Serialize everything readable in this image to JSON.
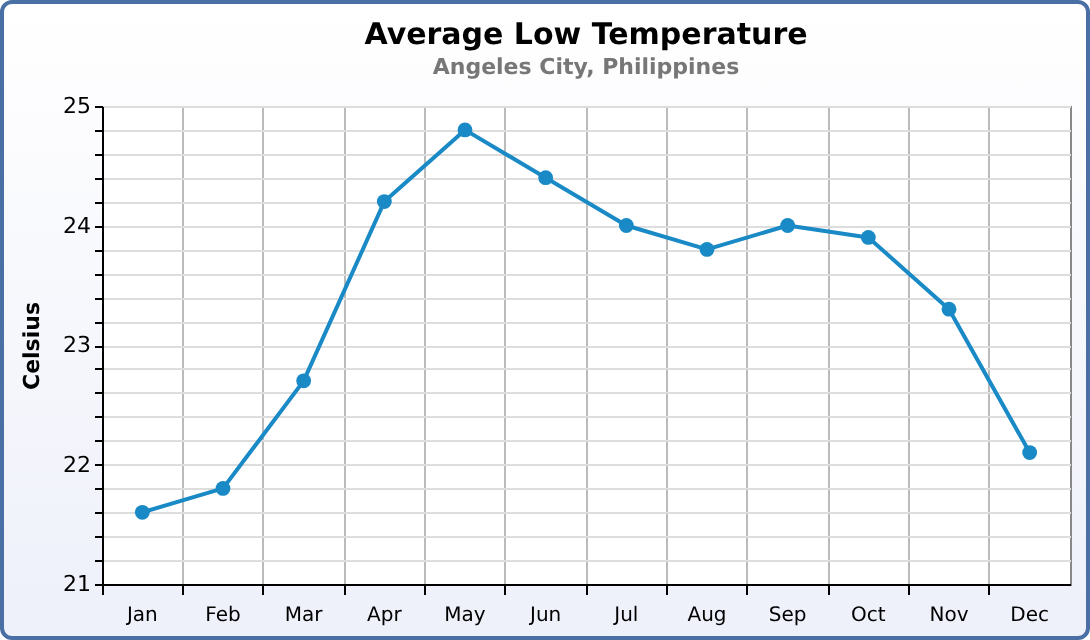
{
  "chart_data": {
    "type": "line",
    "title": "Average Low Temperature",
    "subtitle": "Angeles City, Philippines",
    "ylabel": "Celsius",
    "categories": [
      "Jan",
      "Feb",
      "Mar",
      "Apr",
      "May",
      "Jun",
      "Jul",
      "Aug",
      "Sep",
      "Oct",
      "Nov",
      "Dec"
    ],
    "series": [
      {
        "color": "#1a8ac6",
        "values": [
          21.6,
          21.8,
          22.7,
          24.2,
          24.8,
          24.4,
          24.0,
          23.8,
          24.0,
          23.9,
          23.3,
          22.1
        ]
      }
    ],
    "ylim": [
      21,
      25
    ],
    "yticks": [
      21,
      {
        "value": 21.2,
        "label": null
      },
      {
        "value": 21.4,
        "label": null
      },
      {
        "value": 21.6,
        "label": null
      },
      {
        "value": 21.8,
        "label": null
      },
      22,
      {
        "value": 22.2,
        "label": null
      },
      {
        "value": 22.4,
        "label": null
      },
      {
        "value": 22.6,
        "label": null
      },
      {
        "value": 22.8,
        "label": null
      },
      23,
      {
        "value": 23.2,
        "label": null
      },
      {
        "value": 23.4,
        "label": null
      },
      {
        "value": 23.6,
        "label": null
      },
      {
        "value": 23.8,
        "label": null
      },
      24,
      {
        "value": 24.2,
        "label": null
      },
      {
        "value": 24.4,
        "label": null
      },
      {
        "value": 24.6,
        "label": null
      },
      {
        "value": 24.8,
        "label": null
      },
      25
    ],
    "grid": true,
    "marker": "circle",
    "line_style": "solid",
    "legend": false
  }
}
